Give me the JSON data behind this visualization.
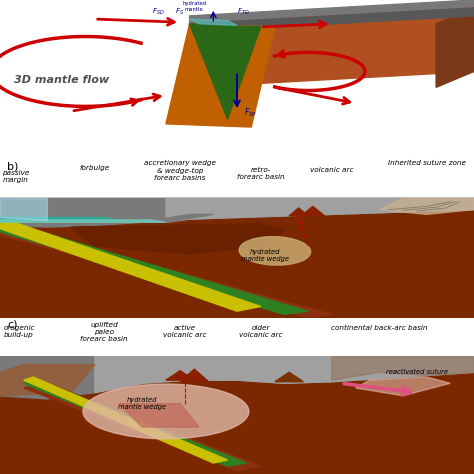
{
  "brown_dark": "#8B2500",
  "brown_mantle": "#7B3000",
  "brown_crust": "#A0522D",
  "brown_orange": "#C86400",
  "gray_plate": "#808080",
  "gray_light": "#A8A8A8",
  "gray_dark": "#606060",
  "green_slab": "#3A7D20",
  "yellow_slab": "#D4C800",
  "teal_water": "#40B0A0",
  "cyan_water": "#70C8C8",
  "red_arrow": "#CC0000",
  "blue_dark": "#000080",
  "pink_wedge": "#E8C0B0",
  "tan_wedge": "#C8A880",
  "cream_suture": "#D0B890",
  "label_fontsize": 5.2,
  "b_passive": "passive\nmargin",
  "b_forbulge": "forbulge",
  "b_accretionary": "accretionary wedge\n& wedge-top\nforearc basins",
  "b_retro": "retro-\nforearc basin",
  "b_volcanic": "volcanic arc",
  "b_inherited": "Inherited suture zone",
  "b_hydrated": "hydrated\nmantle wedge",
  "c_orogenic": "orogenic\nbuild-up",
  "c_uplifted": "uplifted\npaleo\nforearc basin",
  "c_active": "active\nvolcanic arc",
  "c_older": "older\nvolcanic arc",
  "c_backarc": "continental back-arc basin",
  "c_hydrated": "hydrated\nmantle wedge",
  "c_reactivated": "reactivated suture"
}
